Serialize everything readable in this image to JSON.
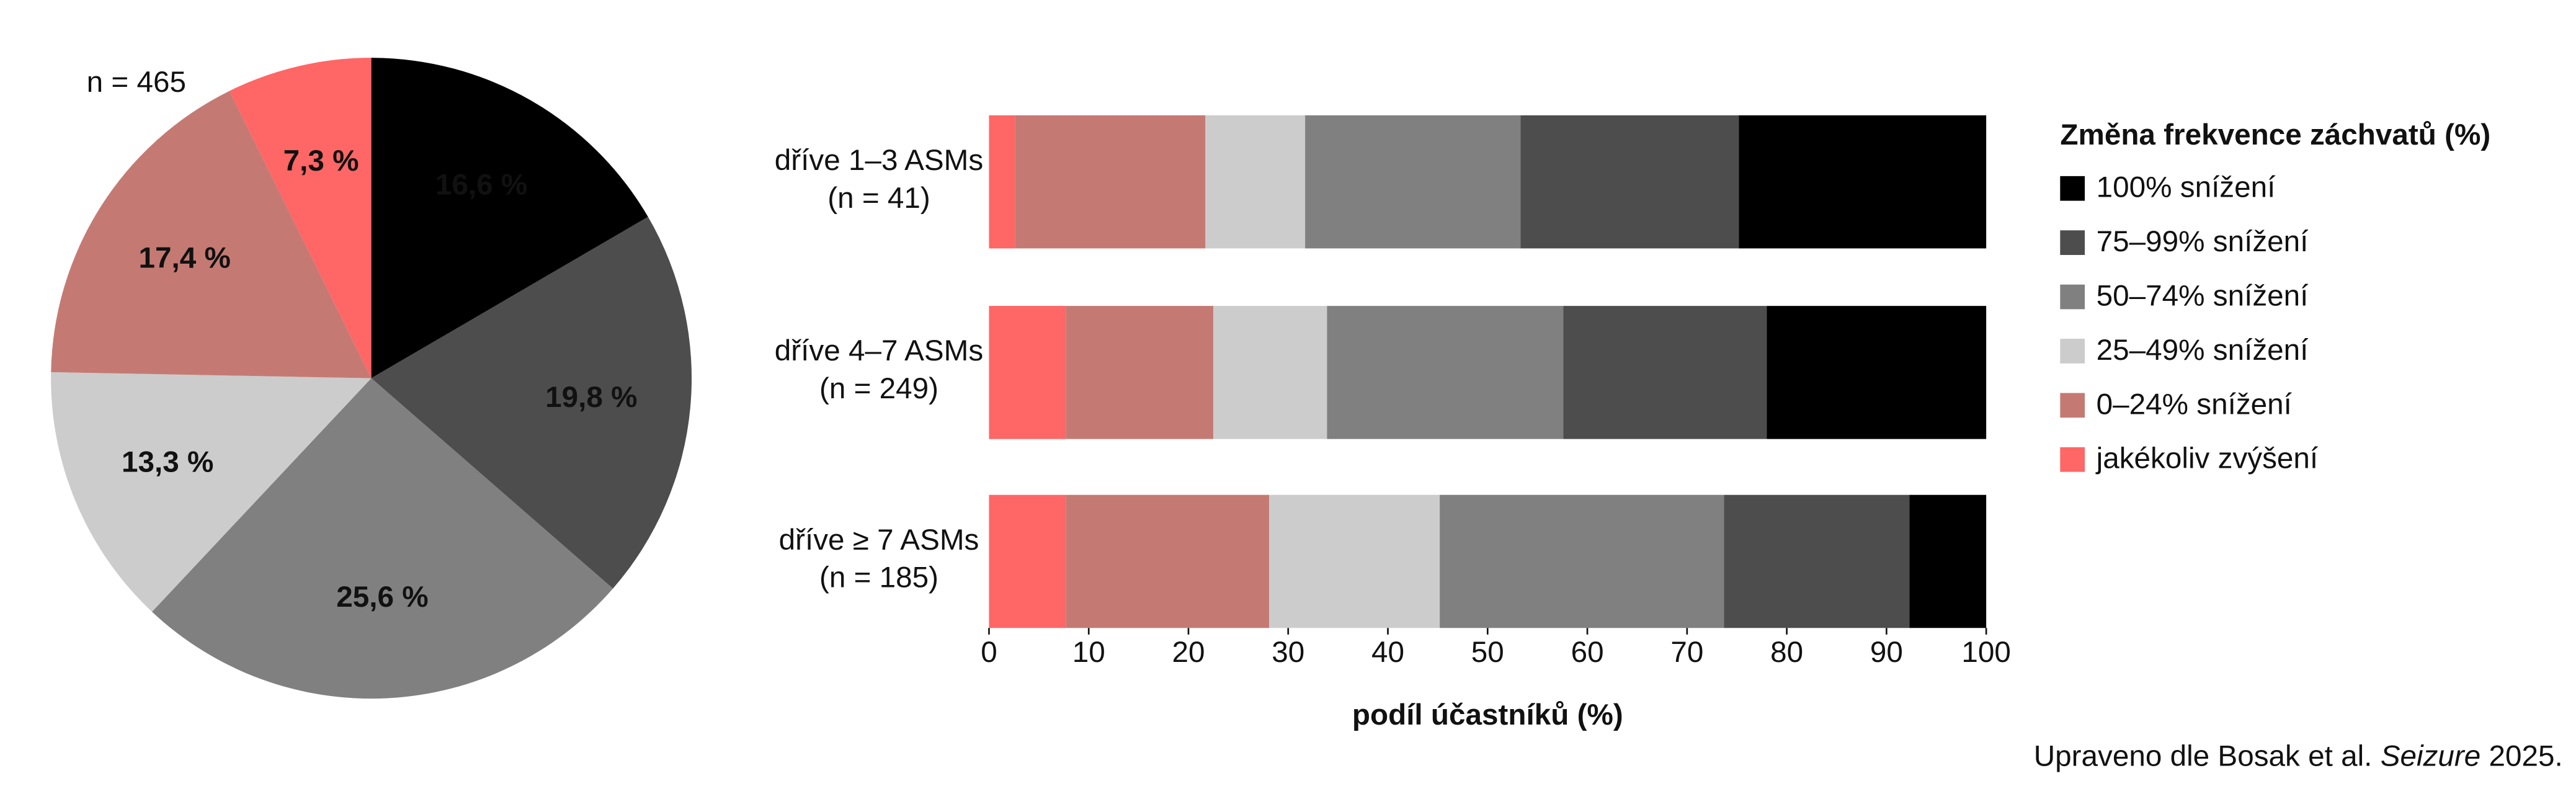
{
  "charts": [
    {
      "type": "pie",
      "annotation": "n = 465",
      "values": [
        16.6,
        19.8,
        25.6,
        13.3,
        17.4,
        7.3
      ],
      "value_labels": [
        "16,6 %",
        "19,8 %",
        "25,6 %",
        "13,3 %",
        "17,4 %",
        "7,3 %"
      ],
      "colors": [
        "#000000",
        "#4d4d4d",
        "#808080",
        "#cccccc",
        "#c47a73",
        "#ff6666"
      ]
    },
    {
      "type": "stacked_barh",
      "categories": [
        [
          "dříve 1–3 ASMs",
          "(n = 41)"
        ],
        [
          "dříve 4–7 ASMs",
          "(n = 249)"
        ],
        [
          "dříve ≥ 7 ASMs",
          "(n = 185)"
        ]
      ],
      "legend_title": "Změna frekvence záchvatů (%)",
      "legend_position": "right",
      "xlabel": "podíl účastníků (%)",
      "xlim": [
        0,
        100
      ],
      "xticks": [
        0,
        10,
        20,
        30,
        40,
        50,
        60,
        70,
        80,
        90,
        100
      ],
      "series": [
        {
          "name": "100% snížení",
          "color": "#000000",
          "values": [
            24.8,
            22.0,
            7.7
          ]
        },
        {
          "name": "75–99% snížení",
          "color": "#4d4d4d",
          "values": [
            21.9,
            20.4,
            18.6
          ]
        },
        {
          "name": "50–74% snížení",
          "color": "#808080",
          "values": [
            21.6,
            23.7,
            28.5
          ]
        },
        {
          "name": "25–49% snížení",
          "color": "#cccccc",
          "values": [
            10.0,
            11.4,
            17.1
          ]
        },
        {
          "name": "0–24% snížení",
          "color": "#c47a73",
          "values": [
            19.1,
            14.8,
            20.4
          ]
        },
        {
          "name": "jakékoliv zvýšení",
          "color": "#ff6666",
          "values": [
            2.6,
            7.7,
            7.7
          ]
        }
      ]
    }
  ],
  "source": {
    "text": "Upraveno dle Bosak et al.",
    "journal": "Seizure",
    "year": "2025."
  }
}
